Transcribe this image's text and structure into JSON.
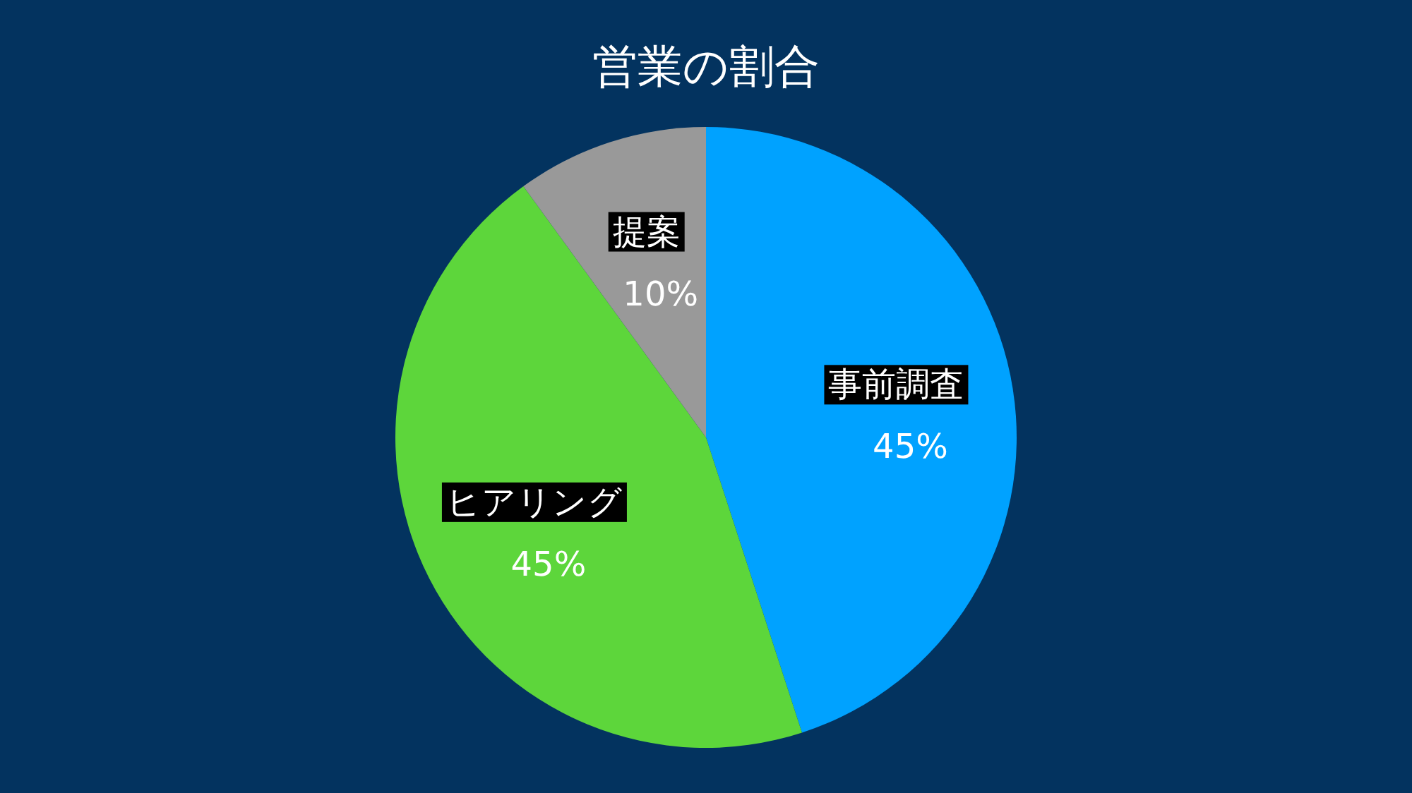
{
  "chart_data": {
    "type": "pie",
    "title": "営業の割合",
    "categories": [
      "事前調査",
      "ヒアリング",
      "提案"
    ],
    "values": [
      45,
      45,
      10
    ],
    "colors": [
      "#00a2ff",
      "#5dd63b",
      "#999999"
    ],
    "value_labels": [
      "45%",
      "45%",
      "10%"
    ]
  }
}
